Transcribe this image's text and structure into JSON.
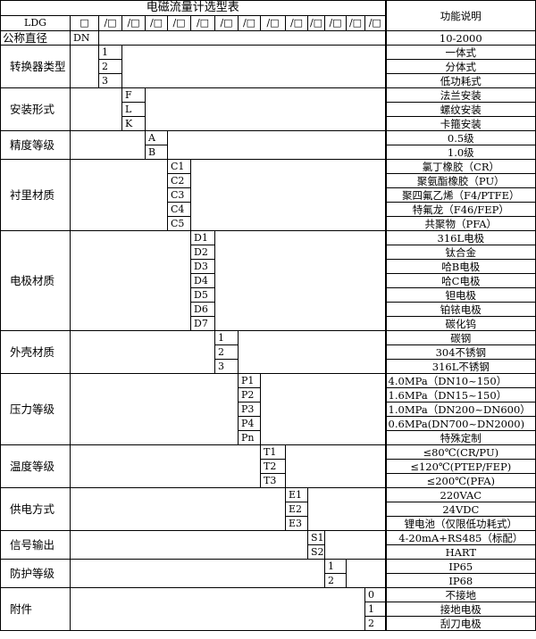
{
  "title": "电磁流量计选型表",
  "function_header": "功能说明",
  "model_row": {
    "prefix": "LDG",
    "slots": [
      "□",
      "/□",
      "/□",
      "/□",
      "/□",
      "/□",
      "/□",
      "/□",
      "/□",
      "/□",
      "/□",
      "/□",
      "/□",
      "/□"
    ]
  },
  "nominal": {
    "label": "公称直径",
    "code": "DN",
    "desc": "10-2000"
  },
  "groups": [
    {
      "label": "转换器类型",
      "col": 2,
      "items": [
        {
          "code": "1",
          "desc": "一体式"
        },
        {
          "code": "2",
          "desc": "分体式"
        },
        {
          "code": "3",
          "desc": "低功耗式"
        }
      ]
    },
    {
      "label": "安装形式",
      "col": 3,
      "items": [
        {
          "code": "F",
          "desc": "法兰安装"
        },
        {
          "code": "L",
          "desc": "螺纹安装"
        },
        {
          "code": "K",
          "desc": "卡箍安装"
        }
      ]
    },
    {
      "label": "精度等级",
      "col": 4,
      "items": [
        {
          "code": "A",
          "desc": "0.5级"
        },
        {
          "code": "B",
          "desc": "1.0级"
        }
      ]
    },
    {
      "label": "衬里材质",
      "col": 5,
      "items": [
        {
          "code": "C1",
          "desc": "氯丁橡胶（CR）"
        },
        {
          "code": "C2",
          "desc": "聚氨酯橡胶（PU）"
        },
        {
          "code": "C3",
          "desc": "聚四氟乙烯（F4/PTFE）"
        },
        {
          "code": "C4",
          "desc": "特氟龙（F46/FEP）"
        },
        {
          "code": "C5",
          "desc": "共聚物（PFA）"
        }
      ]
    },
    {
      "label": "电极材质",
      "col": 6,
      "items": [
        {
          "code": "D1",
          "desc": "316L电极"
        },
        {
          "code": "D2",
          "desc": "钛合金"
        },
        {
          "code": "D3",
          "desc": "哈B电极"
        },
        {
          "code": "D4",
          "desc": "哈C电极"
        },
        {
          "code": "D5",
          "desc": "钽电极"
        },
        {
          "code": "D6",
          "desc": "铂铱电极"
        },
        {
          "code": "D7",
          "desc": "碳化钨"
        }
      ]
    },
    {
      "label": "外壳材质",
      "col": 7,
      "items": [
        {
          "code": "1",
          "desc": "碳钢"
        },
        {
          "code": "2",
          "desc": "304不锈钢"
        },
        {
          "code": "3",
          "desc": "316L不锈钢"
        }
      ]
    },
    {
      "label": "压力等级",
      "col": 8,
      "items": [
        {
          "code": "P1",
          "desc": "4.0MPa（DN10~150）",
          "left": true
        },
        {
          "code": "P2",
          "desc": "1.6MPa（DN15~150）",
          "left": true
        },
        {
          "code": "P3",
          "desc": "1.0MPa（DN200~DN600）",
          "left": true
        },
        {
          "code": "P4",
          "desc": "0.6MPa(DN700~DN2000)",
          "left": true
        },
        {
          "code": "Pn",
          "desc": "特殊定制"
        }
      ]
    },
    {
      "label": "温度等级",
      "col": 9,
      "items": [
        {
          "code": "T1",
          "desc": "≤80℃(CR/PU)"
        },
        {
          "code": "T2",
          "desc": "≤120℃(PTEP/FEP)"
        },
        {
          "code": "T3",
          "desc": "≤200℃(PFA)"
        }
      ]
    },
    {
      "label": "供电方式",
      "col": 10,
      "items": [
        {
          "code": "E1",
          "desc": "220VAC"
        },
        {
          "code": "E2",
          "desc": "24VDC"
        },
        {
          "code": "E3",
          "desc": "锂电池（仅限低功耗式）"
        }
      ]
    },
    {
      "label": "信号输出",
      "col": 11,
      "items": [
        {
          "code": "S1",
          "desc": "4-20mA+RS485（标配）"
        },
        {
          "code": "S2",
          "desc": "HART"
        }
      ]
    },
    {
      "label": "防护等级",
      "col": 12,
      "items": [
        {
          "code": "1",
          "desc": "IP65"
        },
        {
          "code": "2",
          "desc": "IP68"
        }
      ]
    },
    {
      "label": "附件",
      "col": 14,
      "items": [
        {
          "code": "0",
          "desc": "不接地"
        },
        {
          "code": "1",
          "desc": "接地电极"
        },
        {
          "code": "2",
          "desc": "刮刀电极"
        }
      ]
    }
  ]
}
